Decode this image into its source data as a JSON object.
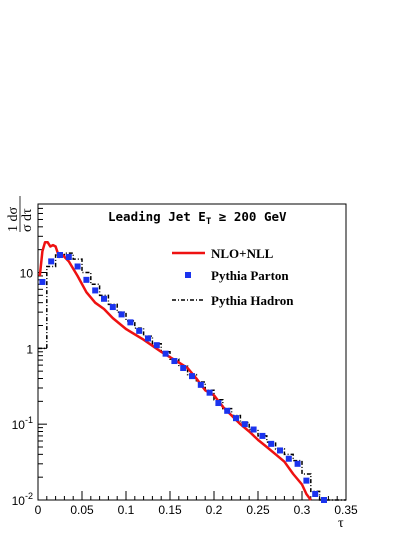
{
  "chart_data": {
    "type": "line",
    "title_main": "Leading Jet E",
    "title_sub": "T",
    "title_rest": " ≥ 200 GeV",
    "xlabel": "τ",
    "ylabel_num": "1 dσ",
    "ylabel_den": "σ dτ",
    "xlim": [
      0,
      0.35
    ],
    "ylim": [
      0.01,
      80
    ],
    "yscale": "log",
    "x_ticks": [
      {
        "value": 0,
        "label": "0"
      },
      {
        "value": 0.05,
        "label": "0.05"
      },
      {
        "value": 0.1,
        "label": "0.1"
      },
      {
        "value": 0.15,
        "label": "0.15"
      },
      {
        "value": 0.2,
        "label": "0.2"
      },
      {
        "value": 0.25,
        "label": "0.25"
      },
      {
        "value": 0.3,
        "label": "0.3"
      },
      {
        "value": 0.35,
        "label": "0.35"
      }
    ],
    "y_ticks": [
      {
        "value": 0.01,
        "base": "10",
        "exp": "-2"
      },
      {
        "value": 0.1,
        "base": "10",
        "exp": "-1"
      },
      {
        "value": 1,
        "base": "1",
        "exp": ""
      },
      {
        "value": 10,
        "base": "10",
        "exp": ""
      }
    ],
    "legend_position": "top-right",
    "series": [
      {
        "name": "NLO+NLL",
        "style": "line",
        "color": "#ee1111",
        "points": [
          [
            0.002,
            9.0
          ],
          [
            0.005,
            19.0
          ],
          [
            0.008,
            25.0
          ],
          [
            0.011,
            25.0
          ],
          [
            0.014,
            22.0
          ],
          [
            0.017,
            23.0
          ],
          [
            0.02,
            22.0
          ],
          [
            0.024,
            16.0
          ],
          [
            0.028,
            17.0
          ],
          [
            0.035,
            14.0
          ],
          [
            0.045,
            9.0
          ],
          [
            0.055,
            5.5
          ],
          [
            0.065,
            4.0
          ],
          [
            0.075,
            3.3
          ],
          [
            0.085,
            2.5
          ],
          [
            0.1,
            1.8
          ],
          [
            0.12,
            1.3
          ],
          [
            0.14,
            0.9
          ],
          [
            0.16,
            0.65
          ],
          [
            0.17,
            0.55
          ],
          [
            0.18,
            0.4
          ],
          [
            0.19,
            0.28
          ],
          [
            0.2,
            0.24
          ],
          [
            0.21,
            0.17
          ],
          [
            0.22,
            0.13
          ],
          [
            0.23,
            0.1
          ],
          [
            0.24,
            0.08
          ],
          [
            0.25,
            0.062
          ],
          [
            0.26,
            0.05
          ],
          [
            0.27,
            0.04
          ],
          [
            0.28,
            0.032
          ],
          [
            0.29,
            0.022
          ],
          [
            0.3,
            0.016
          ],
          [
            0.305,
            0.012
          ],
          [
            0.31,
            0.01
          ]
        ]
      },
      {
        "name": "Pythia Parton",
        "style": "marker",
        "color": "#1a33ee",
        "x": [
          0.005,
          0.015,
          0.025,
          0.035,
          0.045,
          0.055,
          0.065,
          0.075,
          0.085,
          0.095,
          0.105,
          0.115,
          0.125,
          0.135,
          0.145,
          0.155,
          0.165,
          0.175,
          0.185,
          0.195,
          0.205,
          0.215,
          0.225,
          0.235,
          0.245,
          0.255,
          0.265,
          0.275,
          0.285,
          0.295,
          0.305,
          0.315,
          0.325
        ],
        "y": [
          7.5,
          14,
          17,
          16,
          12,
          8,
          5.8,
          4.5,
          3.5,
          2.8,
          2.2,
          1.7,
          1.35,
          1.1,
          0.85,
          0.68,
          0.55,
          0.43,
          0.33,
          0.26,
          0.19,
          0.15,
          0.12,
          0.1,
          0.085,
          0.07,
          0.055,
          0.045,
          0.035,
          0.03,
          0.018,
          0.012,
          0.01
        ]
      },
      {
        "name": "Pythia Hadron",
        "style": "dash-dot-step",
        "color": "#000000",
        "edges": [
          0.0,
          0.01,
          0.02,
          0.03,
          0.04,
          0.05,
          0.06,
          0.07,
          0.08,
          0.09,
          0.1,
          0.11,
          0.12,
          0.13,
          0.14,
          0.15,
          0.16,
          0.17,
          0.18,
          0.19,
          0.2,
          0.21,
          0.22,
          0.23,
          0.24,
          0.25,
          0.26,
          0.27,
          0.28,
          0.29,
          0.3,
          0.31,
          0.32,
          0.33,
          0.34,
          0.35
        ],
        "values": [
          1.0,
          12,
          17,
          18,
          15,
          10,
          7,
          5,
          3.8,
          3.0,
          2.3,
          1.85,
          1.45,
          1.15,
          0.9,
          0.72,
          0.58,
          0.45,
          0.36,
          0.28,
          0.21,
          0.16,
          0.13,
          0.105,
          0.085,
          0.07,
          0.058,
          0.047,
          0.04,
          0.033,
          0.022,
          0.013,
          0.01,
          0.01,
          0.01
        ]
      }
    ]
  }
}
